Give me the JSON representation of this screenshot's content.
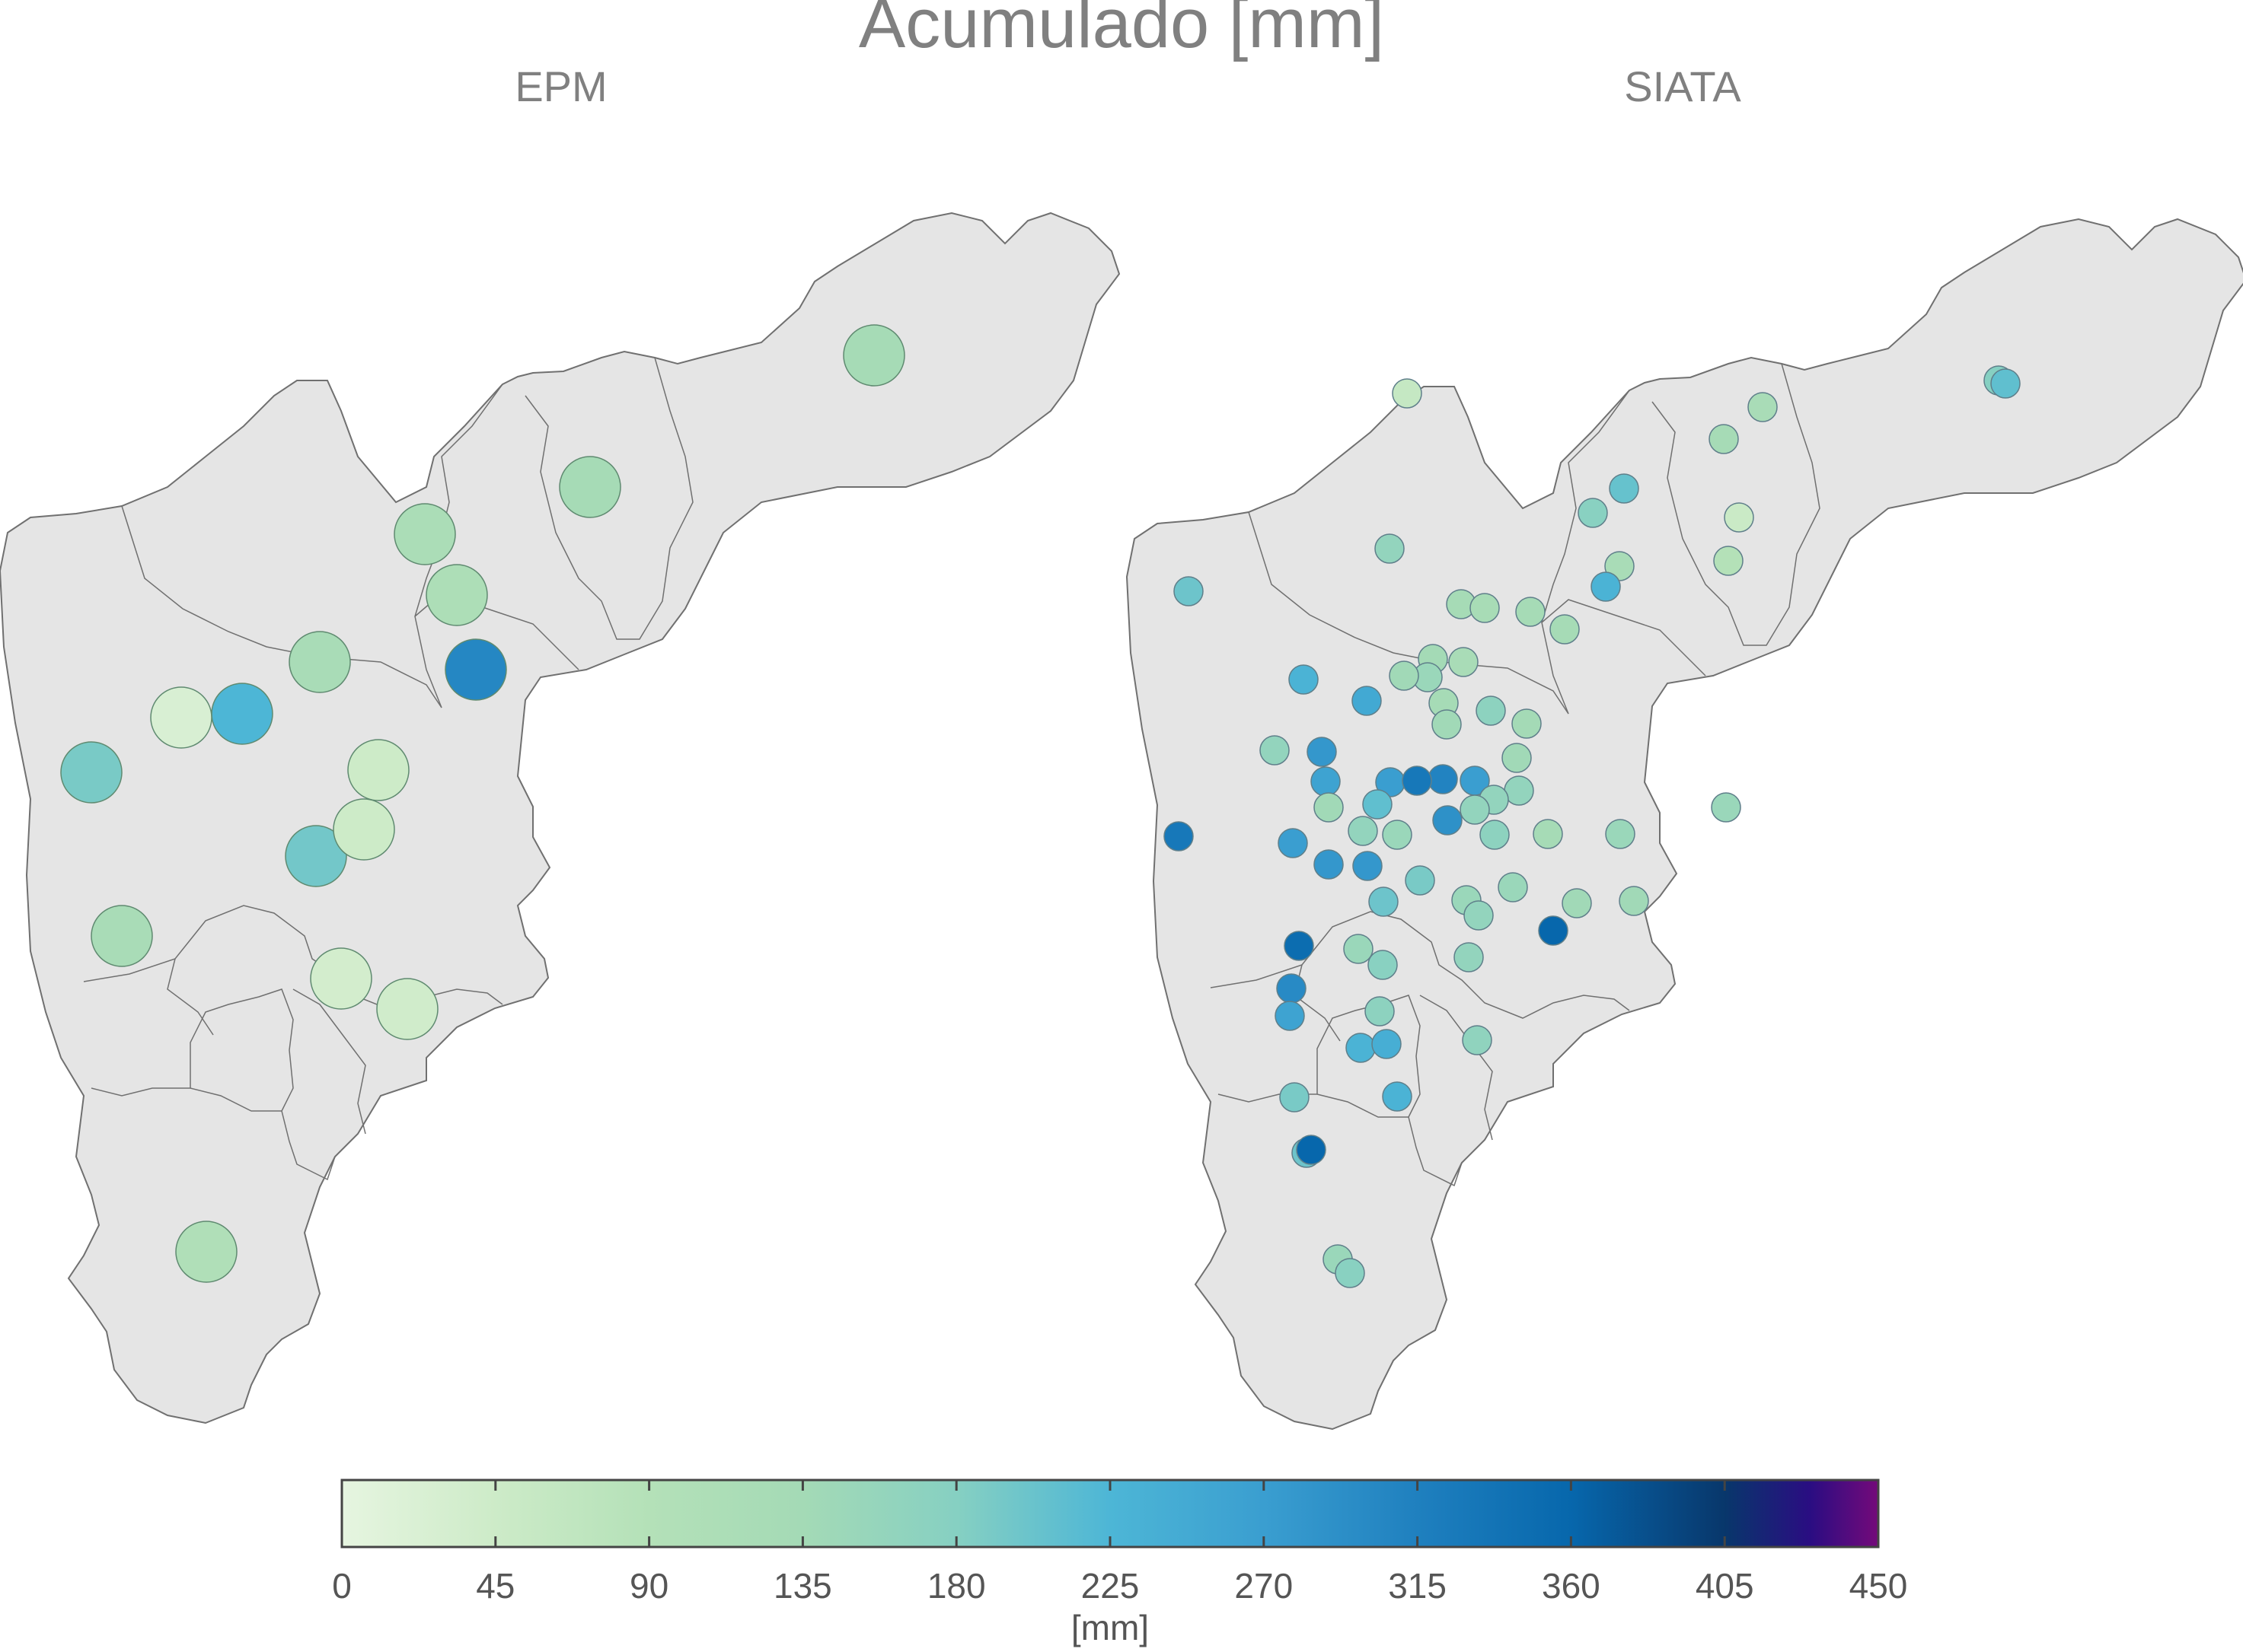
{
  "figure": {
    "title": "Acumulado [mm]",
    "panels": [
      {
        "id": "epm",
        "title": "EPM"
      },
      {
        "id": "siata",
        "title": "SIATA"
      }
    ]
  },
  "colorbar": {
    "label": "[mm]",
    "min": 0,
    "max": 450,
    "ticks": [
      0,
      45,
      90,
      135,
      180,
      225,
      270,
      315,
      360,
      405,
      450
    ],
    "tick_labels": [
      "0",
      "45",
      "90",
      "135",
      "180",
      "225",
      "270",
      "315",
      "360",
      "405",
      "450"
    ],
    "colormap_stops": [
      {
        "value": 0,
        "color": "#e6f5e0"
      },
      {
        "value": 45,
        "color": "#cdebc8"
      },
      {
        "value": 90,
        "color": "#b4e1b8"
      },
      {
        "value": 135,
        "color": "#a4dab6"
      },
      {
        "value": 180,
        "color": "#86d0c2"
      },
      {
        "value": 225,
        "color": "#4db6d6"
      },
      {
        "value": 270,
        "color": "#3a9ed0"
      },
      {
        "value": 315,
        "color": "#1f80bf"
      },
      {
        "value": 360,
        "color": "#0767ac"
      },
      {
        "value": 405,
        "color": "#08376b"
      },
      {
        "value": 430,
        "color": "#2a0d82"
      },
      {
        "value": 450,
        "color": "#740a7a"
      }
    ]
  },
  "basemap": {
    "fill": "#e5e5e5",
    "stroke": "#707070"
  },
  "stations": {
    "epm": [
      190,
      120,
      195,
      305,
      130,
      130,
      115,
      110,
      120,
      225,
      25,
      45,
      45,
      35,
      40,
      100
    ]
  }
}
